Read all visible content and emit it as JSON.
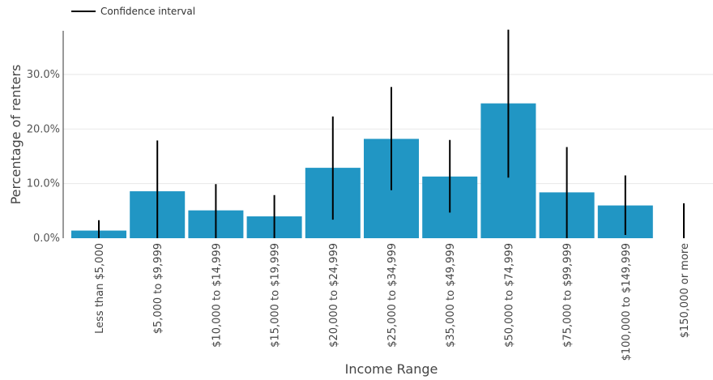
{
  "legend": {
    "label": "Confidence interval"
  },
  "chart_data": {
    "type": "bar",
    "xlabel": "Income Range",
    "ylabel": "Percentage of renters",
    "ylim": [
      0,
      38
    ],
    "yticks": [
      0,
      10,
      20,
      30
    ],
    "ytick_labels": [
      "0.0%",
      "10.0%",
      "20.0%",
      "30.0%"
    ],
    "grid": true,
    "legend_position": "top-left",
    "bar_color": "#2196c4",
    "error_color": "#000000",
    "categories": [
      "Less than $5,000",
      "$5,000 to $9,999",
      "$10,000 to $14,999",
      "$15,000 to $19,999",
      "$20,000 to $24,999",
      "$25,000 to $34,999",
      "$35,000 to $49,999",
      "$50,000 to $74,999",
      "$75,000 to $99,999",
      "$100,000 to $149,999",
      "$150,000 or more"
    ],
    "values": [
      1.4,
      8.6,
      5.1,
      4.0,
      12.9,
      18.2,
      11.3,
      24.7,
      8.4,
      6.0,
      0.0
    ],
    "error_low": [
      0.0,
      0.0,
      0.0,
      0.0,
      3.4,
      8.8,
      4.7,
      11.1,
      0.0,
      0.6,
      0.0
    ],
    "error_high": [
      3.3,
      17.9,
      9.9,
      7.9,
      22.3,
      27.7,
      18.0,
      38.2,
      16.7,
      11.5,
      6.4
    ]
  }
}
